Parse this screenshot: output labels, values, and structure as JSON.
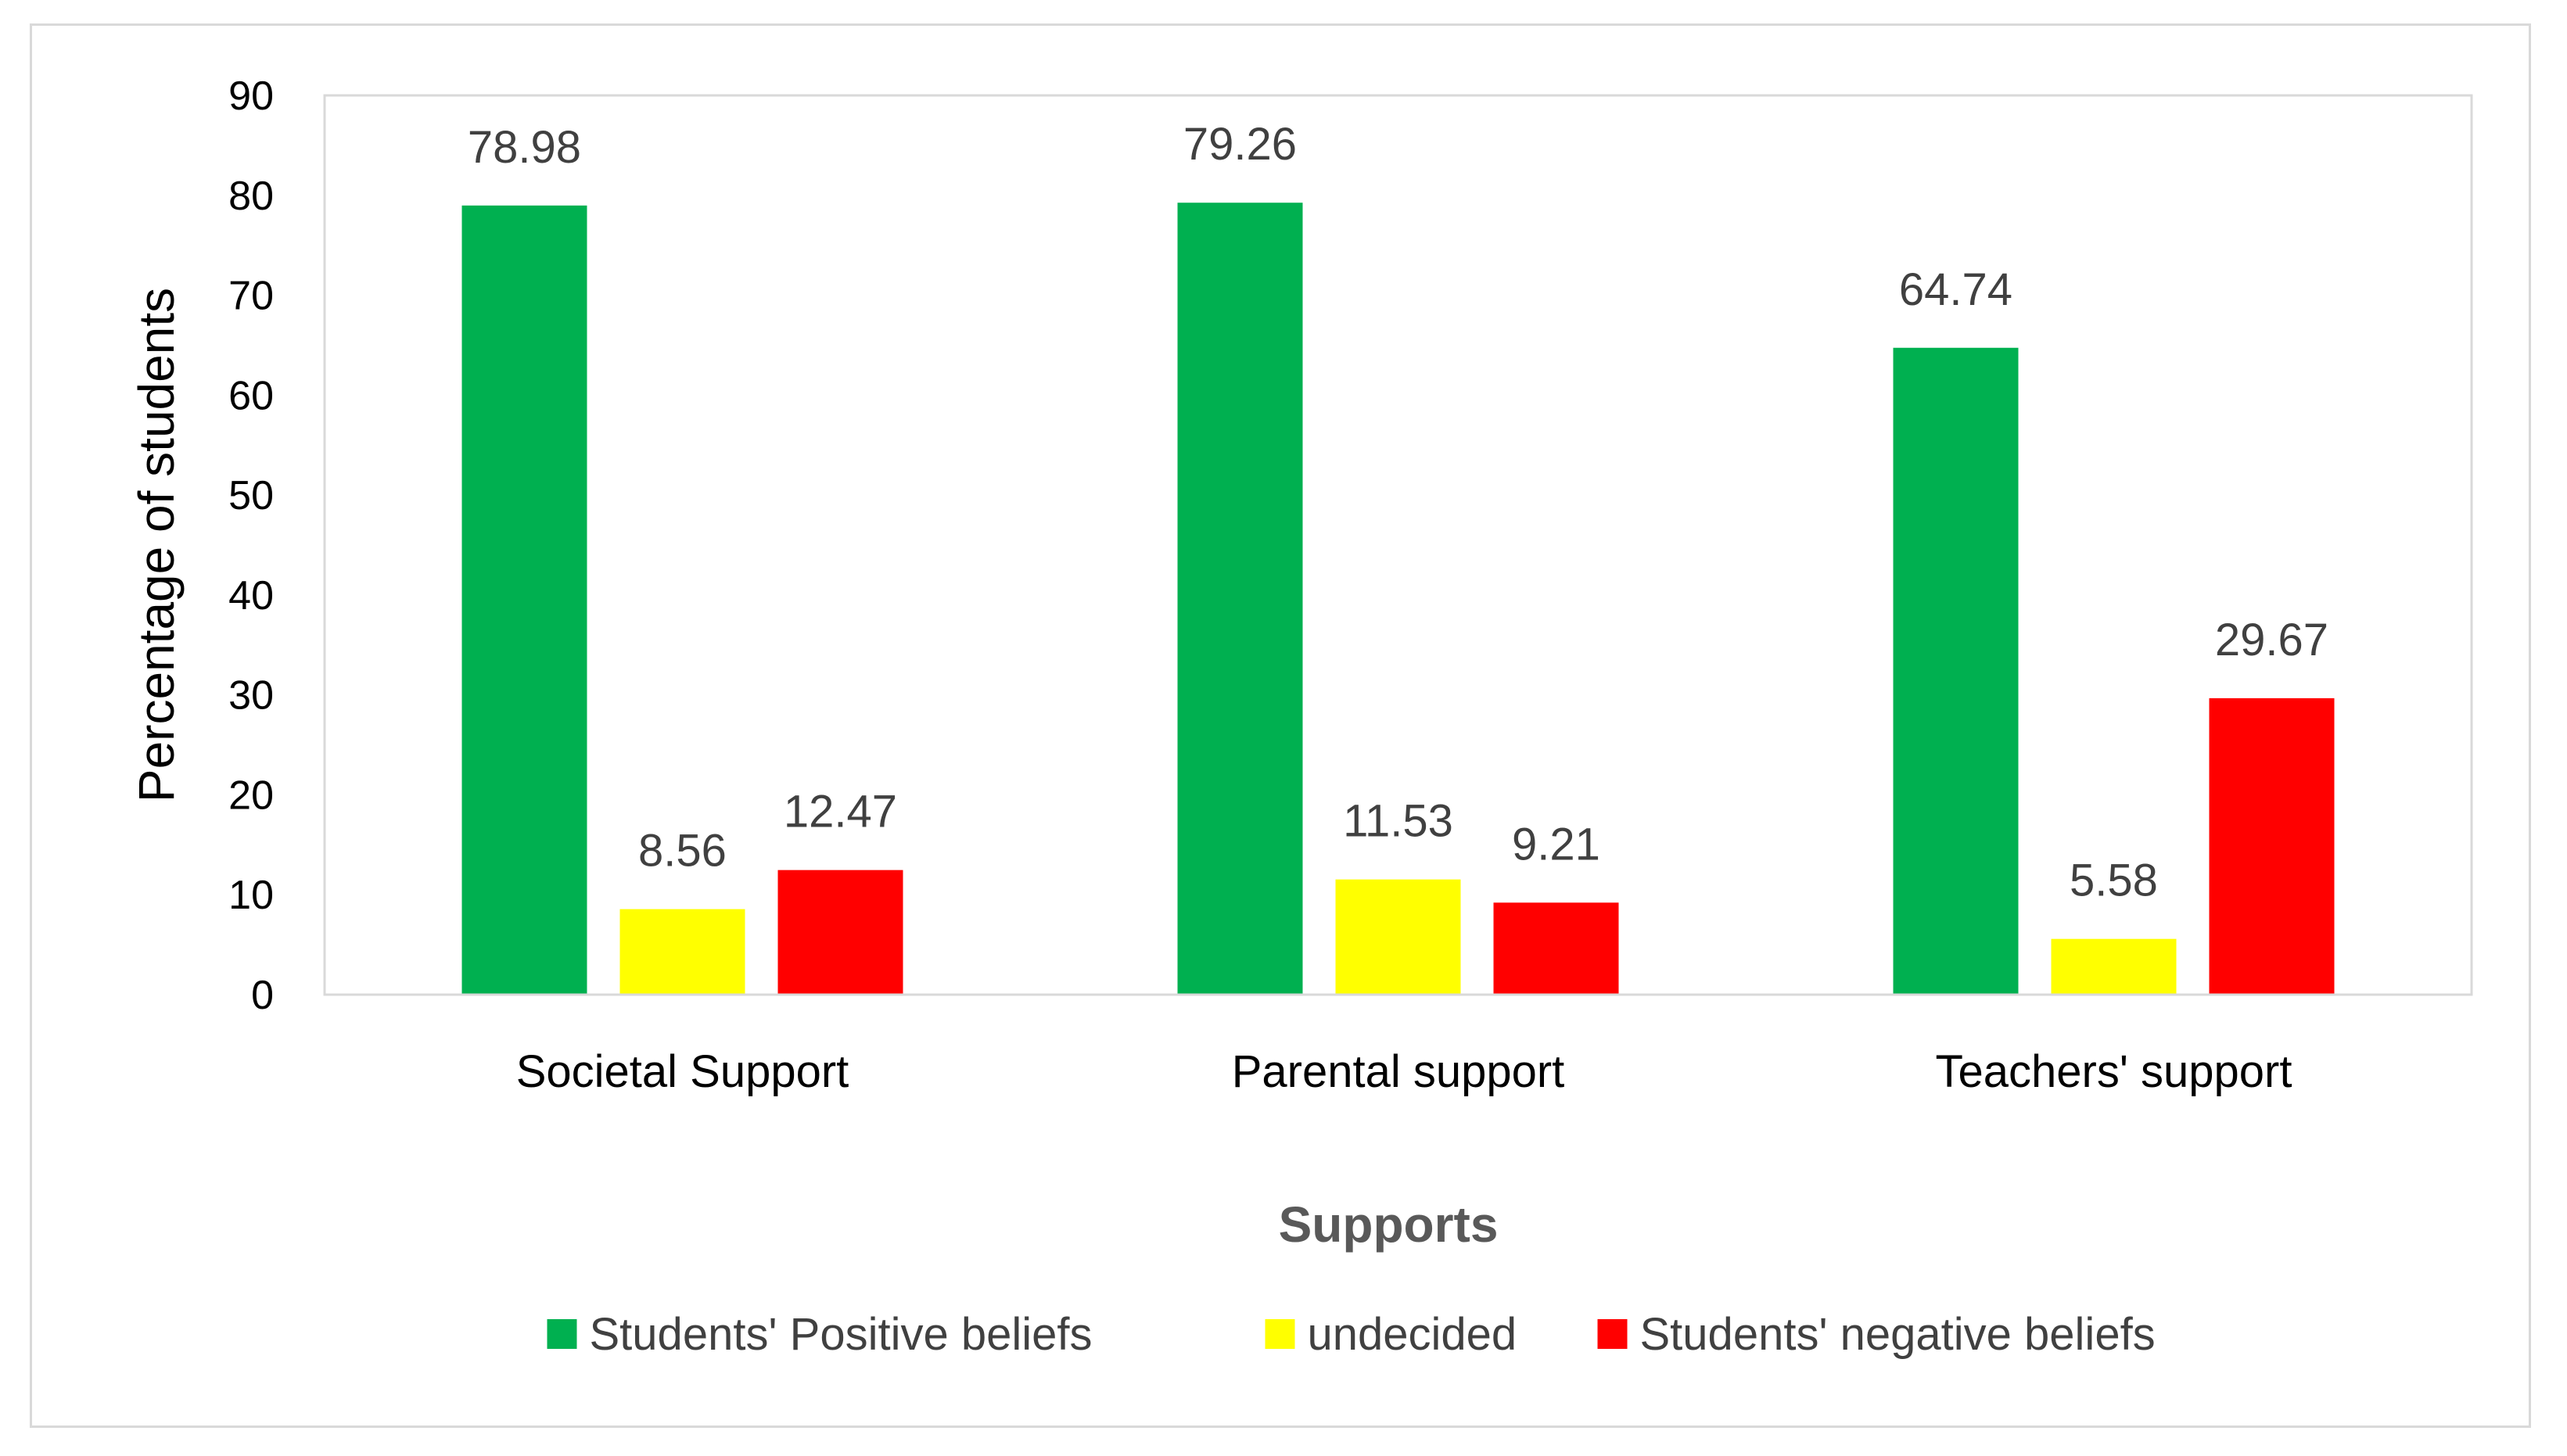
{
  "chart_data": {
    "type": "bar",
    "title": "",
    "xlabel": "Supports",
    "ylabel": "Percentage of students",
    "ylim": [
      0,
      90
    ],
    "yticks": [
      0,
      10,
      20,
      30,
      40,
      50,
      60,
      70,
      80,
      90
    ],
    "grid": false,
    "legend_position": "bottom",
    "categories": [
      "Societal Support",
      "Parental support",
      "Teachers' support"
    ],
    "series": [
      {
        "name": "Students' Positive beliefs",
        "color": "#00b050",
        "values": [
          78.98,
          79.26,
          64.74
        ]
      },
      {
        "name": "undecided",
        "color": "#ffff00",
        "values": [
          8.56,
          11.53,
          5.58
        ]
      },
      {
        "name": "Students' negative beliefs",
        "color": "#ff0000",
        "values": [
          12.47,
          9.21,
          29.67
        ]
      }
    ]
  }
}
